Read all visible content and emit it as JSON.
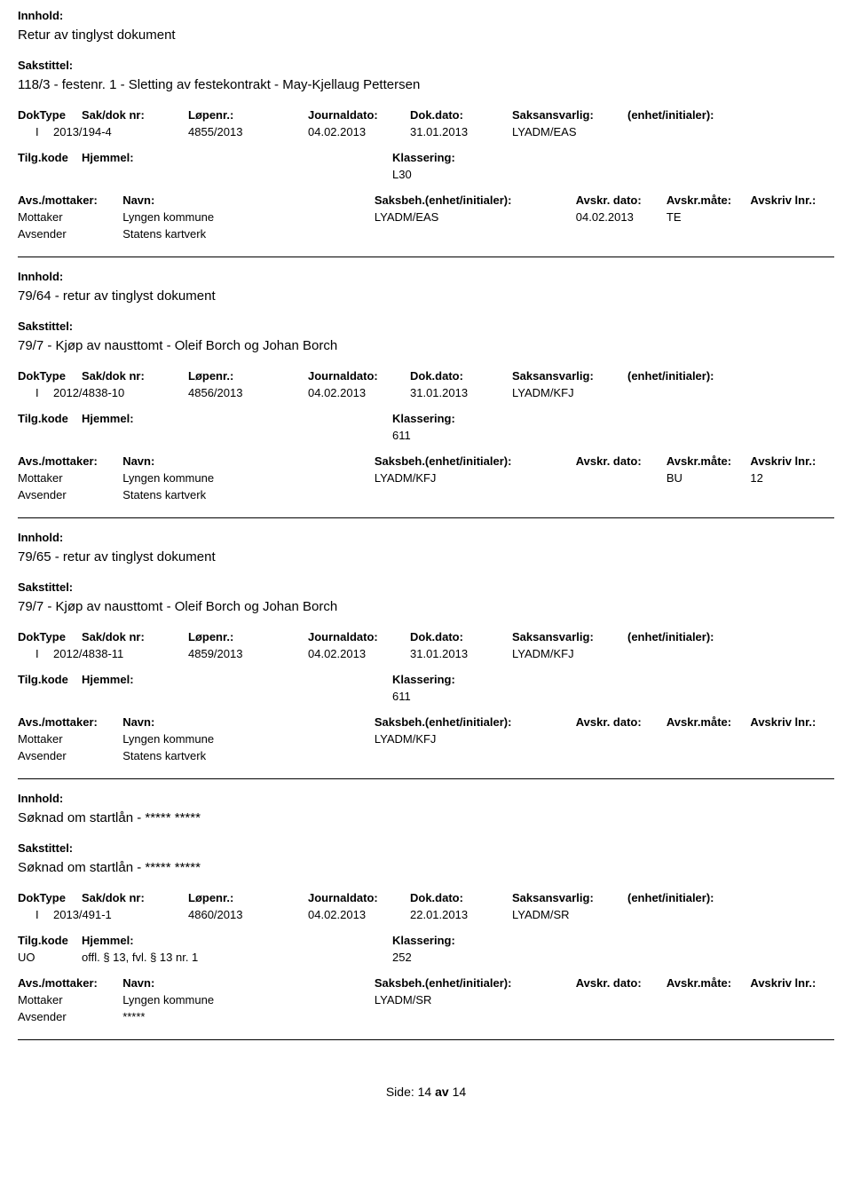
{
  "labels": {
    "innhold": "Innhold:",
    "sakstittel": "Sakstittel:",
    "doktype": "DokType",
    "sakdoknr": "Sak/dok nr:",
    "lopenr": "Løpenr.:",
    "journaldato": "Journaldato:",
    "dokdato": "Dok.dato:",
    "saksansvarlig": "Saksansvarlig:",
    "enhet": "(enhet/initialer):",
    "tilgkode": "Tilg.kode",
    "hjemmel": "Hjemmel:",
    "klassering": "Klassering:",
    "avsmottaker": "Avs./mottaker:",
    "navn": "Navn:",
    "saksbeh": "Saksbeh.(enhet/initialer):",
    "avskrdato": "Avskr. dato:",
    "avskrmate": "Avskr.måte:",
    "avskrivlnr": "Avskriv lnr.:",
    "mottaker": "Mottaker",
    "avsender": "Avsender",
    "side": "Side:",
    "av": "av"
  },
  "records": [
    {
      "innhold": "Retur av tinglyst dokument",
      "sakstittel": "118/3 - festenr. 1 - Sletting av festekontrakt - May-Kjellaug Pettersen",
      "doktype": "I",
      "sakdoknr": "2013/194-4",
      "lopenr": "4855/2013",
      "journaldato": "04.02.2013",
      "dokdato": "31.01.2013",
      "saksansvarlig": "LYADM/EAS",
      "enhet": "",
      "tilgkode": "",
      "hjemmel": "",
      "klassering": "L30",
      "rows": [
        {
          "type": "Mottaker",
          "navn": "Lyngen kommune",
          "saksbeh": "LYADM/EAS",
          "avskrdato": "04.02.2013",
          "avskrmate": "TE",
          "avskrlnr": ""
        },
        {
          "type": "Avsender",
          "navn": "Statens kartverk",
          "saksbeh": "",
          "avskrdato": "",
          "avskrmate": "",
          "avskrlnr": ""
        }
      ]
    },
    {
      "innhold": "79/64 - retur av tinglyst dokument",
      "sakstittel": "79/7 - Kjøp av nausttomt - Oleif Borch og Johan Borch",
      "doktype": "I",
      "sakdoknr": "2012/4838-10",
      "lopenr": "4856/2013",
      "journaldato": "04.02.2013",
      "dokdato": "31.01.2013",
      "saksansvarlig": "LYADM/KFJ",
      "enhet": "",
      "tilgkode": "",
      "hjemmel": "",
      "klassering": "611",
      "rows": [
        {
          "type": "Mottaker",
          "navn": "Lyngen kommune",
          "saksbeh": "LYADM/KFJ",
          "avskrdato": "",
          "avskrmate": "BU",
          "avskrlnr": "12"
        },
        {
          "type": "Avsender",
          "navn": "Statens kartverk",
          "saksbeh": "",
          "avskrdato": "",
          "avskrmate": "",
          "avskrlnr": ""
        }
      ]
    },
    {
      "innhold": "79/65 - retur av tinglyst dokument",
      "sakstittel": "79/7 - Kjøp av nausttomt - Oleif Borch og Johan Borch",
      "doktype": "I",
      "sakdoknr": "2012/4838-11",
      "lopenr": "4859/2013",
      "journaldato": "04.02.2013",
      "dokdato": "31.01.2013",
      "saksansvarlig": "LYADM/KFJ",
      "enhet": "",
      "tilgkode": "",
      "hjemmel": "",
      "klassering": "611",
      "rows": [
        {
          "type": "Mottaker",
          "navn": "Lyngen kommune",
          "saksbeh": "LYADM/KFJ",
          "avskrdato": "",
          "avskrmate": "",
          "avskrlnr": ""
        },
        {
          "type": "Avsender",
          "navn": "Statens kartverk",
          "saksbeh": "",
          "avskrdato": "",
          "avskrmate": "",
          "avskrlnr": ""
        }
      ]
    },
    {
      "innhold": "Søknad om startlån - ***** *****",
      "sakstittel": "Søknad om startlån - ***** *****",
      "doktype": "I",
      "sakdoknr": "2013/491-1",
      "lopenr": "4860/2013",
      "journaldato": "04.02.2013",
      "dokdato": "22.01.2013",
      "saksansvarlig": "LYADM/SR",
      "enhet": "",
      "tilgkode": "UO",
      "hjemmel": "offl. § 13, fvl. § 13 nr. 1",
      "klassering": "252",
      "rows": [
        {
          "type": "Mottaker",
          "navn": "Lyngen kommune",
          "saksbeh": "LYADM/SR",
          "avskrdato": "",
          "avskrmate": "",
          "avskrlnr": ""
        },
        {
          "type": "Avsender",
          "navn": "*****",
          "saksbeh": "",
          "avskrdato": "",
          "avskrmate": "",
          "avskrlnr": ""
        }
      ]
    }
  ],
  "footer": {
    "page": "14",
    "total": "14"
  }
}
